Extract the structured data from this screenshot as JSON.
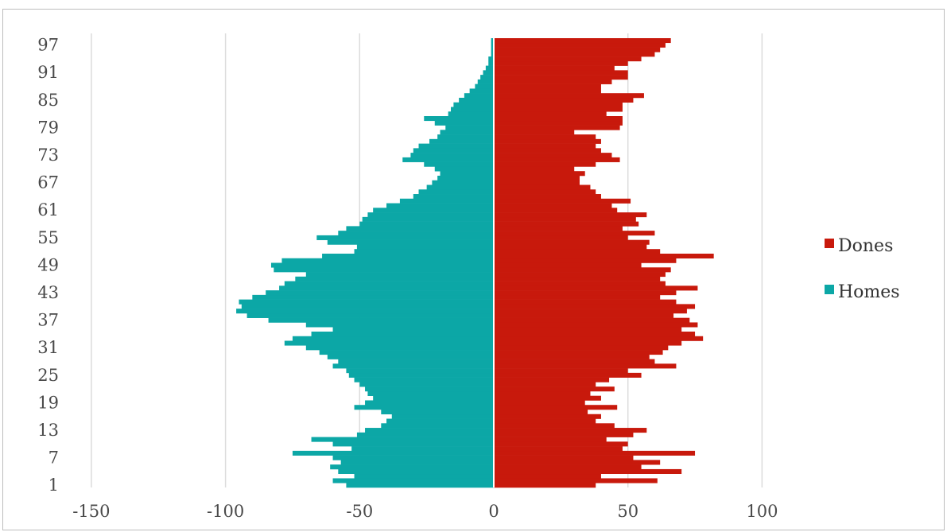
{
  "chart_data": {
    "type": "bar",
    "orientation": "horizontal",
    "subtype": "population-pyramid",
    "title": "",
    "xlabel": "",
    "ylabel": "",
    "xlim": [
      -150,
      150
    ],
    "x_ticks": [
      -150,
      -100,
      -50,
      0,
      50,
      100
    ],
    "x_tick_labels": [
      "-150",
      "-100",
      "-50",
      "0",
      "50",
      "100"
    ],
    "y_tick_labels": [
      "1",
      "7",
      "13",
      "19",
      "25",
      "31",
      "37",
      "43",
      "49",
      "55",
      "61",
      "67",
      "73",
      "79",
      "85",
      "91",
      "97"
    ],
    "grid": "vertical",
    "legend": "right",
    "categories": [
      1,
      2,
      3,
      4,
      5,
      6,
      7,
      8,
      9,
      10,
      11,
      12,
      13,
      14,
      15,
      16,
      17,
      18,
      19,
      20,
      21,
      22,
      23,
      24,
      25,
      26,
      27,
      28,
      29,
      30,
      31,
      32,
      33,
      34,
      35,
      36,
      37,
      38,
      39,
      40,
      41,
      42,
      43,
      44,
      45,
      46,
      47,
      48,
      49,
      50,
      51,
      52,
      53,
      54,
      55,
      56,
      57,
      58,
      59,
      60,
      61,
      62,
      63,
      64,
      65,
      66,
      67,
      68,
      69,
      70,
      71,
      72,
      73,
      74,
      75,
      76,
      77,
      78,
      79,
      80,
      81,
      82,
      83,
      84,
      85,
      86,
      87,
      88,
      89,
      90,
      91,
      92,
      93,
      94,
      95,
      96,
      97,
      98
    ],
    "series": [
      {
        "name": "Dones",
        "color": "#c8190c",
        "values": [
          38,
          61,
          40,
          70,
          55,
          62,
          52,
          75,
          48,
          50,
          42,
          52,
          57,
          45,
          38,
          40,
          35,
          46,
          34,
          40,
          36,
          45,
          38,
          43,
          55,
          50,
          68,
          60,
          58,
          63,
          65,
          70,
          78,
          75,
          70,
          76,
          73,
          67,
          72,
          75,
          68,
          62,
          68,
          76,
          64,
          62,
          64,
          66,
          55,
          68,
          82,
          62,
          57,
          58,
          50,
          60,
          48,
          54,
          53,
          57,
          46,
          44,
          51,
          40,
          38,
          36,
          32,
          32,
          34,
          30,
          38,
          47,
          44,
          40,
          38,
          40,
          38,
          30,
          47,
          48,
          48,
          42,
          48,
          48,
          52,
          56,
          40,
          40,
          44,
          50,
          50,
          45,
          50,
          55,
          60,
          62,
          64,
          66
        ]
      },
      {
        "name": "Homes",
        "color": "#0ca7a6",
        "values": [
          -55,
          -60,
          -52,
          -58,
          -61,
          -57,
          -60,
          -75,
          -53,
          -60,
          -68,
          -51,
          -48,
          -42,
          -40,
          -38,
          -42,
          -52,
          -48,
          -45,
          -47,
          -48,
          -50,
          -52,
          -54,
          -55,
          -60,
          -58,
          -62,
          -65,
          -70,
          -78,
          -75,
          -68,
          -60,
          -70,
          -84,
          -92,
          -96,
          -94,
          -95,
          -90,
          -85,
          -80,
          -78,
          -74,
          -70,
          -82,
          -83,
          -79,
          -64,
          -52,
          -51,
          -62,
          -66,
          -58,
          -55,
          -50,
          -49,
          -47,
          -45,
          -40,
          -35,
          -30,
          -28,
          -25,
          -23,
          -21,
          -20,
          -22,
          -26,
          -34,
          -31,
          -30,
          -28,
          -24,
          -21,
          -20,
          -18,
          -22,
          -26,
          -17,
          -16,
          -15,
          -13,
          -11,
          -9,
          -7,
          -6,
          -5,
          -4,
          -3,
          -2,
          -2,
          -1,
          -1,
          -1,
          -1
        ]
      }
    ]
  }
}
